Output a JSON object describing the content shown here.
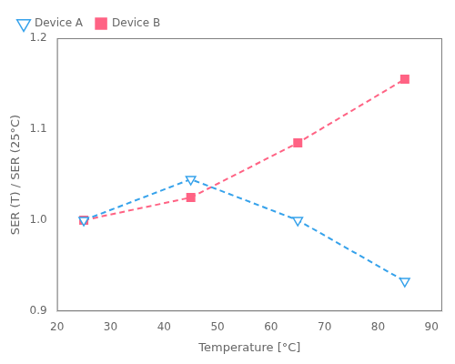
{
  "chart_data": {
    "type": "line",
    "xlabel": "Temperature [°C]",
    "ylabel": "SER (T) / SER (25°C)",
    "x": [
      25,
      45,
      65,
      85
    ],
    "series": [
      {
        "name": "Device A",
        "values": [
          1.0,
          1.045,
          1.0,
          0.933
        ],
        "marker": "triangle_down",
        "line_style": "dashed"
      },
      {
        "name": "Device B",
        "values": [
          1.0,
          1.025,
          1.085,
          1.155
        ],
        "marker": "square",
        "line_style": "dashed"
      }
    ],
    "xlim": [
      20,
      92
    ],
    "ylim": [
      0.9,
      1.2
    ],
    "xticks": [
      20,
      30,
      40,
      50,
      60,
      70,
      80,
      90
    ],
    "yticks": [
      0.9,
      {
        "value": 1.0,
        "label": "1.0"
      },
      1.1,
      1.2
    ],
    "legend": "upper left",
    "grid": false
  }
}
